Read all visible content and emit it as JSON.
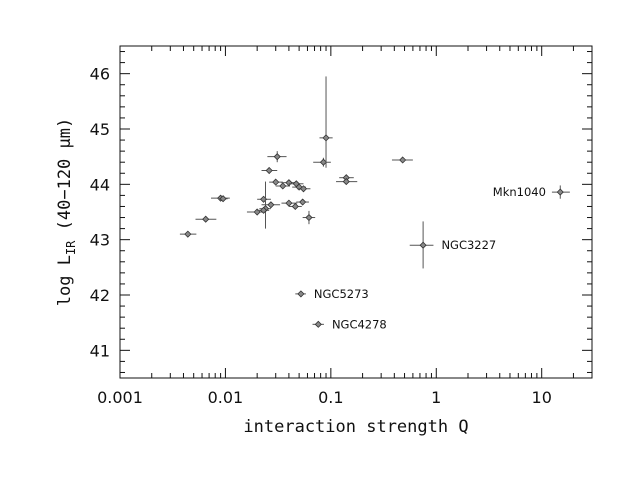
{
  "chart_data": {
    "type": "scatter",
    "xscale": "log",
    "xlim": [
      0.001,
      30
    ],
    "ylim": [
      40.5,
      46.5
    ],
    "xlabel": "interaction strength Q",
    "ylabel_main": "log L",
    "ylabel_sub": "IR",
    "ylabel_tail": " (40−120 μm)",
    "xticks": [
      {
        "v": 0.001,
        "label": "0.001"
      },
      {
        "v": 0.01,
        "label": "0.01"
      },
      {
        "v": 0.1,
        "label": "0.1"
      },
      {
        "v": 1,
        "label": "1"
      },
      {
        "v": 10,
        "label": "10"
      }
    ],
    "yticks": [
      {
        "v": 41,
        "label": "41"
      },
      {
        "v": 42,
        "label": "42"
      },
      {
        "v": 43,
        "label": "43"
      },
      {
        "v": 44,
        "label": "44"
      },
      {
        "v": 45,
        "label": "45"
      },
      {
        "v": 46,
        "label": "46"
      }
    ],
    "points": [
      {
        "x": 0.0044,
        "y": 43.1,
        "xlo": 0.0037,
        "xhi": 0.0053,
        "ylo": 43.05,
        "yhi": 43.15
      },
      {
        "x": 0.0065,
        "y": 43.37,
        "xlo": 0.0052,
        "xhi": 0.0082,
        "ylo": 43.33,
        "yhi": 43.41
      },
      {
        "x": 0.009,
        "y": 43.75,
        "xlo": 0.0073,
        "xhi": 0.011,
        "ylo": 43.71,
        "yhi": 43.79
      },
      {
        "x": 0.0095,
        "y": 43.74,
        "xlo": 0.0085,
        "xhi": 0.0105,
        "ylo": 43.7,
        "yhi": 43.78
      },
      {
        "x": 0.02,
        "y": 43.5,
        "xlo": 0.016,
        "xhi": 0.024,
        "ylo": 43.45,
        "yhi": 43.55
      },
      {
        "x": 0.023,
        "y": 43.73,
        "xlo": 0.02,
        "xhi": 0.027,
        "ylo": 43.69,
        "yhi": 43.77
      },
      {
        "x": 0.024,
        "y": 43.56,
        "xlo": 0.021,
        "xhi": 0.027,
        "ylo": 43.2,
        "yhi": 44.05
      },
      {
        "x": 0.023,
        "y": 43.53,
        "xlo": 0.02,
        "xhi": 0.026,
        "ylo": 43.48,
        "yhi": 43.58
      },
      {
        "x": 0.026,
        "y": 44.25,
        "xlo": 0.022,
        "xhi": 0.031,
        "ylo": 44.2,
        "yhi": 44.3
      },
      {
        "x": 0.027,
        "y": 43.63,
        "xlo": 0.022,
        "xhi": 0.033,
        "ylo": 43.58,
        "yhi": 43.68
      },
      {
        "x": 0.031,
        "y": 44.5,
        "xlo": 0.025,
        "xhi": 0.038,
        "ylo": 44.4,
        "yhi": 44.6
      },
      {
        "x": 0.03,
        "y": 44.04,
        "xlo": 0.026,
        "xhi": 0.035,
        "ylo": 44.0,
        "yhi": 44.08
      },
      {
        "x": 0.035,
        "y": 43.97,
        "xlo": 0.03,
        "xhi": 0.041,
        "ylo": 43.93,
        "yhi": 44.01
      },
      {
        "x": 0.04,
        "y": 44.03,
        "xlo": 0.034,
        "xhi": 0.047,
        "ylo": 43.99,
        "yhi": 44.07
      },
      {
        "x": 0.04,
        "y": 43.66,
        "xlo": 0.034,
        "xhi": 0.048,
        "ylo": 43.61,
        "yhi": 43.71
      },
      {
        "x": 0.047,
        "y": 44.01,
        "xlo": 0.04,
        "xhi": 0.055,
        "ylo": 43.97,
        "yhi": 44.05
      },
      {
        "x": 0.046,
        "y": 43.6,
        "xlo": 0.04,
        "xhi": 0.053,
        "ylo": 43.55,
        "yhi": 43.65
      },
      {
        "x": 0.05,
        "y": 43.95,
        "xlo": 0.043,
        "xhi": 0.058,
        "ylo": 43.9,
        "yhi": 44.0
      },
      {
        "x": 0.054,
        "y": 43.68,
        "xlo": 0.047,
        "xhi": 0.062,
        "ylo": 43.63,
        "yhi": 43.73
      },
      {
        "x": 0.055,
        "y": 43.92,
        "xlo": 0.048,
        "xhi": 0.064,
        "ylo": 43.87,
        "yhi": 43.97
      },
      {
        "x": 0.062,
        "y": 43.4,
        "xlo": 0.054,
        "xhi": 0.071,
        "ylo": 43.28,
        "yhi": 43.52
      },
      {
        "x": 0.085,
        "y": 44.4,
        "xlo": 0.068,
        "xhi": 0.1,
        "ylo": 44.32,
        "yhi": 44.48
      },
      {
        "x": 0.09,
        "y": 44.84,
        "xlo": 0.078,
        "xhi": 0.104,
        "ylo": 44.3,
        "yhi": 45.95
      },
      {
        "x": 0.14,
        "y": 44.12,
        "xlo": 0.12,
        "xhi": 0.165,
        "ylo": 44.08,
        "yhi": 44.16
      },
      {
        "x": 0.14,
        "y": 44.05,
        "xlo": 0.112,
        "xhi": 0.178,
        "ylo": 44.01,
        "yhi": 44.09
      },
      {
        "x": 0.48,
        "y": 44.44,
        "xlo": 0.38,
        "xhi": 0.6,
        "ylo": 44.4,
        "yhi": 44.48
      }
    ],
    "labeled_points": [
      {
        "label": "Mkn1040",
        "x": 15,
        "y": 43.86,
        "xlo": 12.5,
        "xhi": 18.5,
        "ylo": 43.74,
        "yhi": 43.98,
        "side": "left"
      },
      {
        "label": "NGC3227",
        "x": 0.75,
        "y": 42.9,
        "xlo": 0.56,
        "xhi": 0.94,
        "ylo": 42.48,
        "yhi": 43.33,
        "side": "right"
      },
      {
        "label": "NGC5273",
        "x": 0.052,
        "y": 42.02,
        "xlo": 0.046,
        "xhi": 0.058,
        "ylo": 41.98,
        "yhi": 42.06,
        "side": "right"
      },
      {
        "label": "NGC4278",
        "x": 0.076,
        "y": 41.47,
        "xlo": 0.067,
        "xhi": 0.086,
        "ylo": 41.43,
        "yhi": 41.51,
        "side": "right"
      }
    ]
  }
}
